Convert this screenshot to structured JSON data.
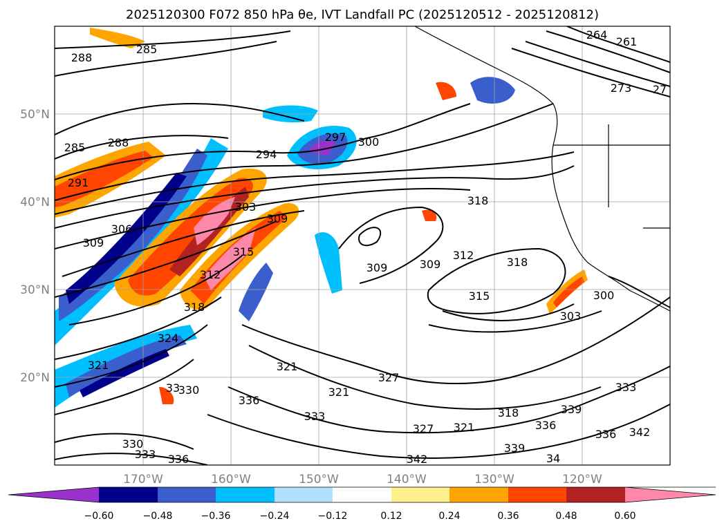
{
  "title": "2025120300 F072 850 hPa θe, IVT Landfall PC (2025120512 - 2025120812)",
  "map": {
    "lon_ticks": [
      "170°W",
      "160°W",
      "150°W",
      "140°W",
      "130°W",
      "120°W"
    ],
    "lat_ticks": [
      "50°N",
      "40°N",
      "30°N",
      "20°N"
    ],
    "gridlines": true,
    "coastline_color": "#000000"
  },
  "contour_labels": [
    "288",
    "285",
    "264",
    "261",
    "273",
    "27",
    "285",
    "288",
    "294",
    "297",
    "300",
    "291",
    "303",
    "306",
    "309",
    "309",
    "318",
    "312",
    "309",
    "309",
    "318",
    "315",
    "312",
    "315",
    "300",
    "303",
    "318",
    "321",
    "324",
    "321",
    "327",
    "321",
    "330",
    "333",
    "336",
    "330",
    "333",
    "336",
    "327",
    "321",
    "318",
    "336",
    "339",
    "333",
    "339",
    "336",
    "342",
    "342",
    "34",
    "33"
  ],
  "colorbar": {
    "ticks": [
      "−0.60",
      "−0.48",
      "−0.36",
      "−0.24",
      "−0.12",
      "0.12",
      "0.24",
      "0.36",
      "0.48",
      "0.60"
    ],
    "colors": [
      "#9932cc",
      "#00008b",
      "#3a5fcd",
      "#00bfff",
      "#b0e2ff",
      "#ffffff",
      "#fff08c",
      "#ffa500",
      "#ff4500",
      "#b22222",
      "#ff88aa"
    ],
    "extend": "both"
  }
}
